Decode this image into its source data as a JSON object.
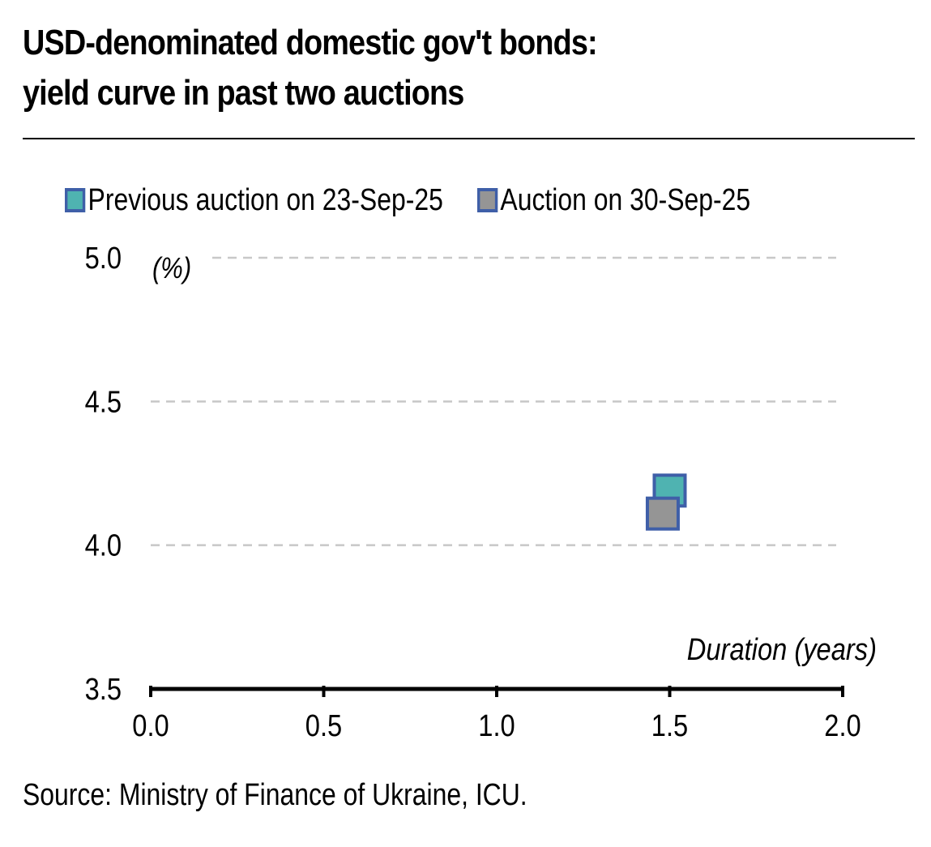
{
  "title_lines": [
    "USD-denominated domestic gov't bonds:",
    "yield curve in past two auctions"
  ],
  "source": "Source: Ministry of Finance of Ukraine, ICU.",
  "colors": {
    "series_previous": "#4fb3b1",
    "series_current": "#959595",
    "marker_border": "#3f5fa8",
    "gridline": "#c8c8c8",
    "axis": "#000000"
  },
  "chart_data": {
    "type": "scatter",
    "title": "USD-denominated domestic gov't bonds: yield curve in past two auctions",
    "xlabel": "Duration (years)",
    "ylabel": "(%)",
    "xlim": [
      0.0,
      2.0
    ],
    "ylim": [
      3.5,
      5.0
    ],
    "x_ticks": [
      "0.0",
      "0.5",
      "1.0",
      "1.5",
      "2.0"
    ],
    "y_ticks": [
      "3.5",
      "4.0",
      "4.5",
      "5.0"
    ],
    "grid": "horizontal dashed",
    "legend_position": "top",
    "series": [
      {
        "name": "Previous auction on 23-Sep-25",
        "color": "#4fb3b1",
        "points": [
          {
            "x": 1.5,
            "y": 4.19
          }
        ]
      },
      {
        "name": "Auction on 30-Sep-25",
        "color": "#959595",
        "points": [
          {
            "x": 1.48,
            "y": 4.11
          }
        ]
      }
    ]
  }
}
